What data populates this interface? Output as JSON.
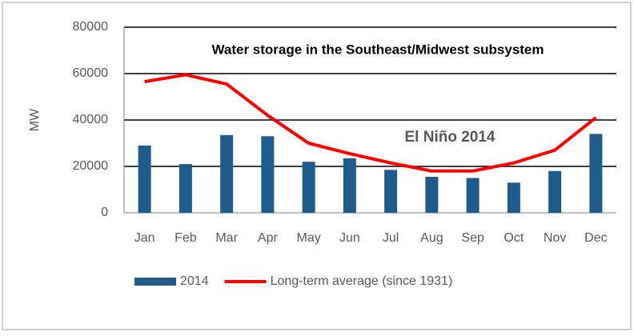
{
  "chart_data": {
    "type": "bar",
    "title": "Water storage in the Southeast/Midwest subsystem",
    "y_axis_label": "MW",
    "annotation": {
      "text": "El Niño 2014",
      "color": "#ff0000"
    },
    "categories": [
      "Jan",
      "Feb",
      "Mar",
      "Apr",
      "May",
      "Jun",
      "Jul",
      "Aug",
      "Sep",
      "Oct",
      "Nov",
      "Dec"
    ],
    "series": [
      {
        "name": "2014",
        "type": "bar",
        "color": "#1f5c8b",
        "values": [
          29000,
          21000,
          33500,
          33000,
          22000,
          23500,
          18500,
          15500,
          15000,
          13000,
          18000,
          34000
        ]
      },
      {
        "name": "Long-term average (since 1931)",
        "type": "line",
        "color": "#ff0000",
        "values": [
          56500,
          59500,
          55500,
          42000,
          30000,
          25500,
          21500,
          18000,
          18000,
          21500,
          27000,
          41000
        ]
      }
    ],
    "ylim": [
      0,
      80000
    ],
    "yticks": [
      0,
      20000,
      40000,
      60000,
      80000
    ],
    "grid": true,
    "legend": "bottom"
  }
}
